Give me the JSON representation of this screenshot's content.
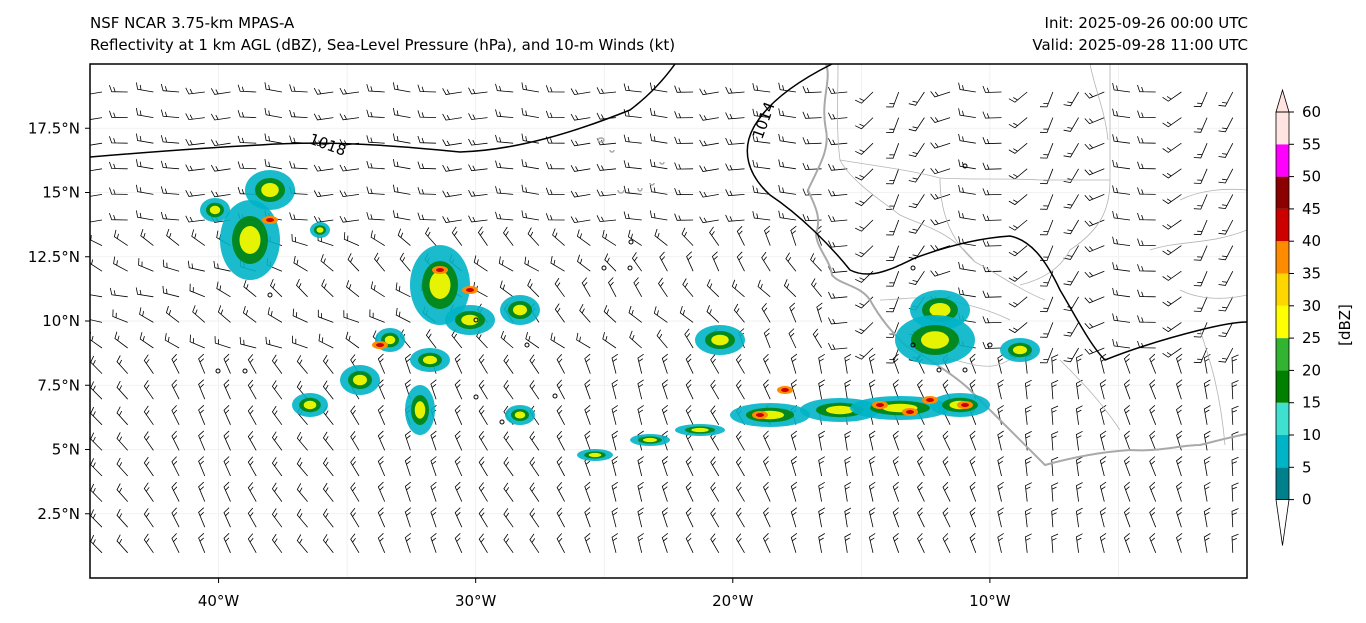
{
  "title": {
    "line1": "NSF NCAR 3.75-km MPAS-A",
    "line2": "Reflectivity at 1 km AGL (dBZ), Sea-Level Pressure (hPa), and 10-m Winds (kt)",
    "init": "Init: 2025-09-26 00:00 UTC",
    "valid": "Valid: 2025-09-28 11:00 UTC"
  },
  "map": {
    "lon_range": [
      -45,
      0
    ],
    "lat_range": [
      0,
      20
    ],
    "lon_ticks": [
      {
        "lon": -40,
        "label": "40°W"
      },
      {
        "lon": -30,
        "label": "30°W"
      },
      {
        "lon": -20,
        "label": "20°W"
      },
      {
        "lon": -10,
        "label": "10°W"
      }
    ],
    "lat_ticks": [
      {
        "lat": 2.5,
        "label": "2.5°N"
      },
      {
        "lat": 5,
        "label": "5°N"
      },
      {
        "lat": 7.5,
        "label": "7.5°N"
      },
      {
        "lat": 10,
        "label": "10°N"
      },
      {
        "lat": 12.5,
        "label": "12.5°N"
      },
      {
        "lat": 15,
        "label": "15°N"
      },
      {
        "lat": 17.5,
        "label": "17.5°N"
      }
    ],
    "isobar_labels": [
      {
        "value": "1018"
      },
      {
        "value": "1014"
      }
    ],
    "land_color": "#ffffff",
    "coast_color": "#a9a9a9",
    "isobar_color": "#000000"
  },
  "colorbar": {
    "unit_label": "[dBZ]",
    "levels": [
      "0",
      "5",
      "10",
      "15",
      "20",
      "25",
      "30",
      "35",
      "40",
      "45",
      "50",
      "55",
      "60"
    ],
    "colors": [
      "#ffffff",
      "#00808a",
      "#00b4c8",
      "#40e0d0",
      "#008000",
      "#32b432",
      "#ffff00",
      "#ffd700",
      "#ff8c00",
      "#cd0000",
      "#8b0000",
      "#ff00ff",
      "#ffe4e1"
    ]
  }
}
